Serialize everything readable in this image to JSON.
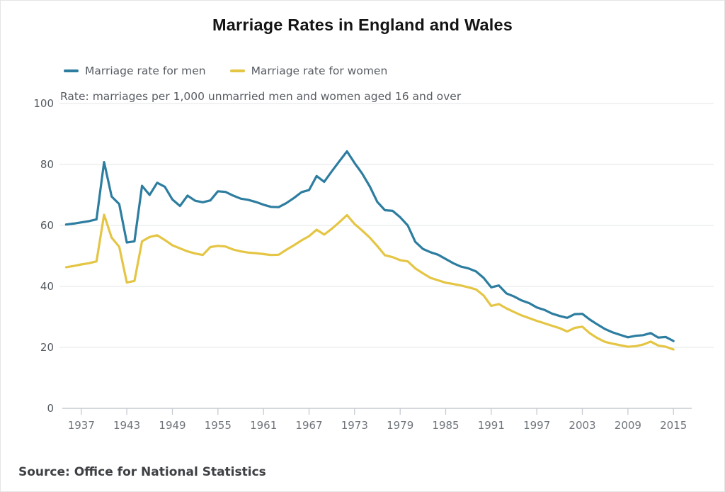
{
  "page": {
    "title": "Marriage Rates in England and Wales",
    "subtitle": "Rate: marriages per 1,000 unmarried men and women aged 16 and over",
    "source": "Source: Office for National Statistics"
  },
  "legend": [
    {
      "label": "Marriage rate for men",
      "color": "#2d7da0"
    },
    {
      "label": "Marriage rate for women",
      "color": "#e5c544"
    }
  ],
  "colors": {
    "men_line": "#2d7da0",
    "women_line": "#e5c544",
    "gridline": "#e8ebee",
    "axis": "#c6cad1",
    "ytick_label": "#565b61",
    "xtick_label": "#70757b",
    "title_text": "#141414",
    "subtitle_text": "#585d63",
    "source_text": "#3e4044"
  },
  "chart_data": {
    "type": "line",
    "title": "Marriage Rates in England and Wales",
    "caption": "Rate: marriages per 1,000 unmarried men and women aged 16 and over",
    "source": "Source: Office for National Statistics",
    "xlabel": "",
    "ylabel": "",
    "ylim": [
      0,
      100
    ],
    "xlim": [
      1934.5,
      2016.5
    ],
    "grid": true,
    "legend_position": "top-left",
    "yticks": [
      0,
      20,
      40,
      60,
      80,
      100
    ],
    "xticks": [
      1937,
      1943,
      1949,
      1955,
      1961,
      1967,
      1973,
      1979,
      1985,
      1991,
      1997,
      2003,
      2009,
      2015
    ],
    "x": [
      1935,
      1936,
      1937,
      1938,
      1939,
      1940,
      1941,
      1942,
      1943,
      1944,
      1945,
      1946,
      1947,
      1948,
      1949,
      1950,
      1951,
      1952,
      1953,
      1954,
      1955,
      1956,
      1957,
      1958,
      1959,
      1960,
      1961,
      1962,
      1963,
      1964,
      1965,
      1966,
      1967,
      1968,
      1969,
      1970,
      1971,
      1972,
      1973,
      1974,
      1975,
      1976,
      1977,
      1978,
      1979,
      1980,
      1981,
      1982,
      1983,
      1984,
      1985,
      1986,
      1987,
      1988,
      1989,
      1990,
      1991,
      1992,
      1993,
      1994,
      1995,
      1996,
      1997,
      1998,
      1999,
      2000,
      2001,
      2002,
      2003,
      2004,
      2005,
      2006,
      2007,
      2008,
      2009,
      2010,
      2011,
      2012,
      2013,
      2014,
      2015
    ],
    "series": [
      {
        "name": "Marriage rate for men",
        "color": "#2d7da0",
        "values": [
          60.3,
          60.6,
          61.0,
          61.4,
          62.0,
          80.8,
          69.5,
          67.0,
          54.4,
          54.8,
          73.0,
          70.0,
          74.0,
          72.7,
          68.5,
          66.4,
          69.8,
          68.1,
          67.6,
          68.2,
          71.2,
          71.0,
          69.8,
          68.8,
          68.4,
          67.7,
          66.8,
          66.1,
          66.0,
          67.3,
          69.0,
          70.9,
          71.6,
          76.2,
          74.3,
          77.8,
          81.1,
          84.3,
          80.5,
          77.0,
          72.8,
          67.7,
          65.0,
          64.8,
          62.7,
          60.0,
          54.6,
          52.3,
          51.2,
          50.4,
          49.0,
          47.6,
          46.5,
          45.9,
          44.9,
          42.8,
          39.7,
          40.3,
          37.7,
          36.7,
          35.4,
          34.5,
          33.1,
          32.3,
          31.1,
          30.3,
          29.7,
          30.9,
          31.0,
          29.1,
          27.5,
          26.0,
          24.9,
          24.1,
          23.3,
          23.8,
          24.0,
          24.7,
          23.2,
          23.4,
          22.1
        ]
      },
      {
        "name": "Marriage rate for women",
        "color": "#e5c544",
        "values": [
          46.3,
          46.7,
          47.2,
          47.6,
          48.2,
          63.5,
          56.0,
          53.0,
          41.3,
          41.8,
          54.8,
          56.2,
          56.8,
          55.2,
          53.5,
          52.5,
          51.5,
          50.8,
          50.3,
          52.9,
          53.3,
          53.1,
          52.1,
          51.5,
          51.1,
          50.9,
          50.6,
          50.3,
          50.4,
          52.0,
          53.5,
          55.1,
          56.5,
          58.6,
          57.0,
          58.9,
          61.1,
          63.4,
          60.5,
          58.3,
          56.0,
          53.2,
          50.2,
          49.6,
          48.6,
          48.2,
          45.9,
          44.3,
          42.8,
          42.0,
          41.2,
          40.8,
          40.3,
          39.7,
          39.0,
          37.0,
          33.6,
          34.2,
          32.8,
          31.6,
          30.5,
          29.6,
          28.7,
          27.9,
          27.1,
          26.3,
          25.2,
          26.4,
          26.8,
          24.6,
          23.0,
          21.8,
          21.2,
          20.7,
          20.2,
          20.4,
          20.9,
          21.9,
          20.6,
          20.2,
          19.3
        ]
      }
    ]
  }
}
